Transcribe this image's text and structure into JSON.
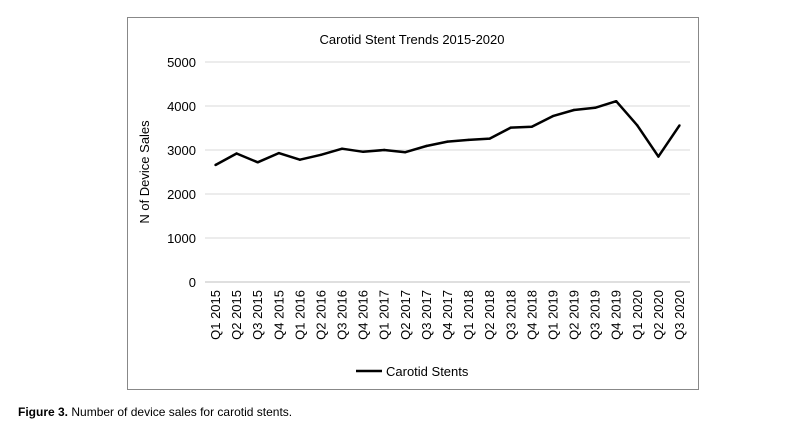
{
  "chart_data": {
    "type": "line",
    "title": "Carotid Stent Trends 2015-2020",
    "xlabel": "",
    "ylabel": "N of Device Sales",
    "ylim": [
      0,
      5000
    ],
    "yticks": [
      0,
      1000,
      2000,
      3000,
      4000,
      5000
    ],
    "grid": "horizontal",
    "legend": "bottom",
    "categories": [
      "Q1 2015",
      "Q2 2015",
      "Q3 2015",
      "Q4 2015",
      "Q1 2016",
      "Q2 2016",
      "Q3 2016",
      "Q4 2016",
      "Q1 2017",
      "Q2 2017",
      "Q3 2017",
      "Q4 2017",
      "Q1 2018",
      "Q2 2018",
      "Q3 2018",
      "Q4 2018",
      "Q1 2019",
      "Q2 2019",
      "Q3 2019",
      "Q4 2019",
      "Q1 2020",
      "Q2 2020",
      "Q3 2020"
    ],
    "series": [
      {
        "name": "Carotid Stents",
        "color": "#000000",
        "values": [
          2660,
          2920,
          2720,
          2930,
          2780,
          2890,
          3030,
          2960,
          3000,
          2950,
          3090,
          3190,
          3230,
          3260,
          3510,
          3530,
          3770,
          3910,
          3960,
          4110,
          3560,
          2850,
          3560
        ]
      }
    ]
  },
  "caption": {
    "label": "Figure 3.",
    "text": "Number of device sales for carotid stents."
  }
}
